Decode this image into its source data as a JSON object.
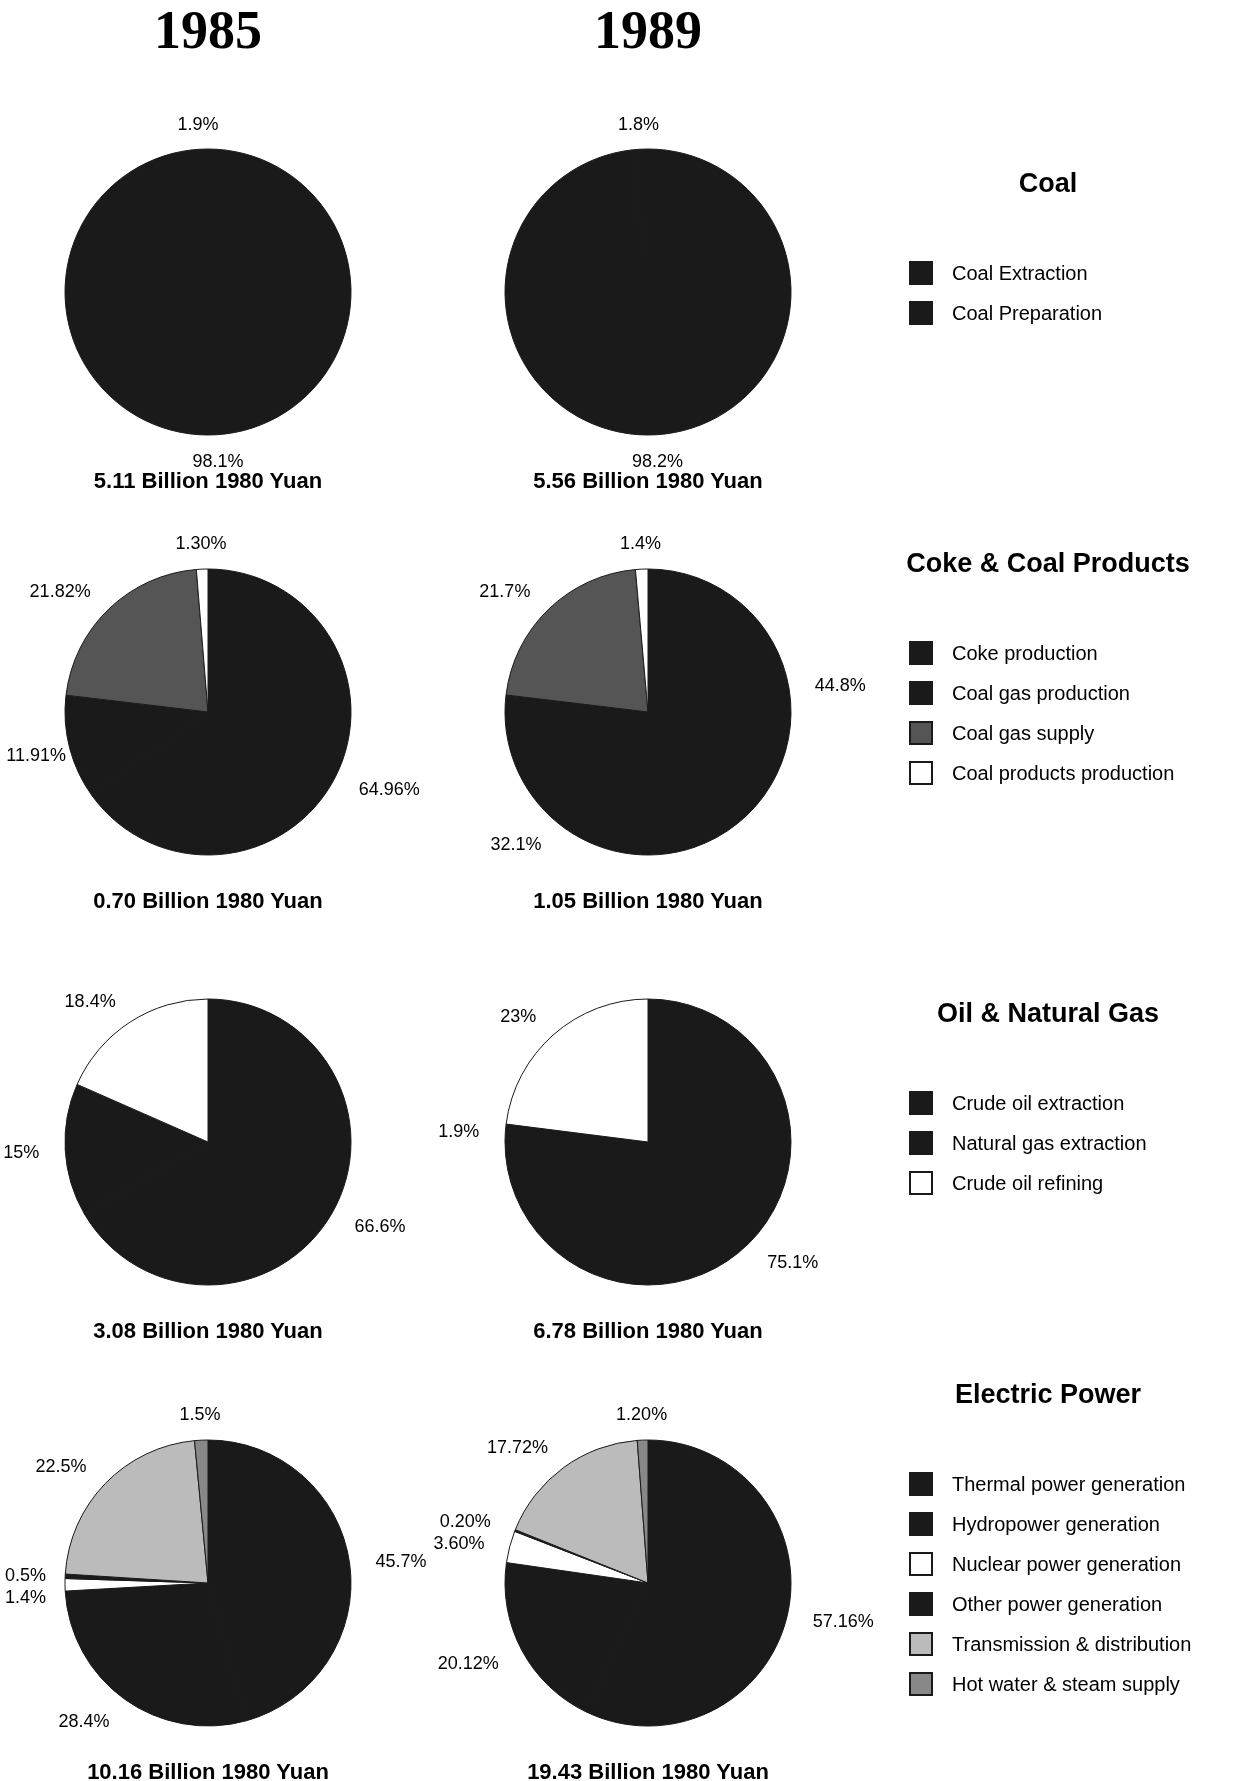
{
  "chart_data": [
    {
      "type": "pie",
      "title": "1985",
      "categories": [
        null,
        null
      ],
      "values": [
        98.1,
        1.9
      ],
      "value_labels": [
        "98.1%",
        "1.9%"
      ],
      "colors": [
        "#1a1a1a",
        "#1a1a1a"
      ],
      "annotations": [
        "5.11 Billion 1980 Yuan"
      ]
    },
    {
      "type": "pie",
      "title": "1989",
      "legend_title": "Coal",
      "legend": "right",
      "categories": [
        "Coal Extraction",
        "Coal Preparation"
      ],
      "values": [
        98.2,
        1.8
      ],
      "value_labels": [
        "98.2%",
        "1.8%"
      ],
      "colors": [
        "#1a1a1a",
        "#1a1a1a"
      ],
      "annotations": [
        "5.56 Billion 1980 Yuan"
      ]
    },
    {
      "type": "pie",
      "categories": [
        null,
        null,
        null,
        null
      ],
      "values": [
        64.96,
        11.91,
        21.82,
        1.3
      ],
      "value_labels": [
        "64.96%",
        "11.91%",
        "21.82%",
        "1.30%"
      ],
      "colors": [
        "#1a1a1a",
        "#1a1a1a",
        "#555555",
        "#ffffff"
      ],
      "annotations": [
        "0.70 Billion 1980 Yuan"
      ]
    },
    {
      "type": "pie",
      "legend_title": "Coke & Coal Products",
      "legend": "right",
      "categories": [
        "Coke production",
        "Coal gas production",
        "Coal gas supply",
        "Coal products production"
      ],
      "values": [
        44.8,
        32.1,
        21.7,
        1.4
      ],
      "value_labels": [
        "44.8%",
        "32.1%",
        "21.7%",
        "1.4%"
      ],
      "colors": [
        "#1a1a1a",
        "#1a1a1a",
        "#555555",
        "#ffffff"
      ],
      "annotations": [
        "1.05 Billion 1980 Yuan"
      ]
    },
    {
      "type": "pie",
      "categories": [
        null,
        null,
        null
      ],
      "values": [
        66.6,
        15,
        18.4
      ],
      "value_labels": [
        "66.6%",
        "15%",
        "18.4%"
      ],
      "colors": [
        "#1a1a1a",
        "#1a1a1a",
        "#ffffff"
      ],
      "annotations": [
        "3.08 Billion 1980 Yuan"
      ]
    },
    {
      "type": "pie",
      "legend_title": "Oil & Natural Gas",
      "legend": "right",
      "categories": [
        "Crude oil extraction",
        "Natural gas extraction",
        "Crude oil refining"
      ],
      "values": [
        75.1,
        1.9,
        23
      ],
      "value_labels": [
        "75.1%",
        "1.9%",
        "23%"
      ],
      "colors": [
        "#1a1a1a",
        "#1a1a1a",
        "#ffffff"
      ],
      "annotations": [
        "6.78 Billion 1980 Yuan"
      ]
    },
    {
      "type": "pie",
      "categories": [
        null,
        null,
        null,
        null,
        null,
        null
      ],
      "values": [
        45.7,
        28.4,
        1.4,
        0.5,
        22.5,
        1.5
      ],
      "value_labels": [
        "45.7%",
        "28.4%",
        "1.4%",
        "0.5%",
        "22.5%",
        "1.5%"
      ],
      "colors": [
        "#1a1a1a",
        "#1a1a1a",
        "#ffffff",
        "#1a1a1a",
        "#bbbbbb",
        "#888888"
      ],
      "annotations": [
        "10.16 Billion 1980 Yuan"
      ]
    },
    {
      "type": "pie",
      "legend_title": "Electric Power",
      "legend": "right",
      "categories": [
        "Thermal power generation",
        "Hydropower generation",
        "Nuclear power generation",
        "Other power generation",
        "Transmission & distribution",
        "Hot water & steam supply"
      ],
      "values": [
        57.16,
        20.12,
        3.6,
        0.2,
        17.72,
        1.2
      ],
      "value_labels": [
        "57.16%",
        "20.12%",
        "3.60%",
        "0.20%",
        "17.72%",
        "1.20%"
      ],
      "colors": [
        "#1a1a1a",
        "#1a1a1a",
        "#ffffff",
        "#1a1a1a",
        "#bbbbbb",
        "#888888"
      ],
      "annotations": [
        "19.43 Billion 1980 Yuan"
      ]
    }
  ]
}
